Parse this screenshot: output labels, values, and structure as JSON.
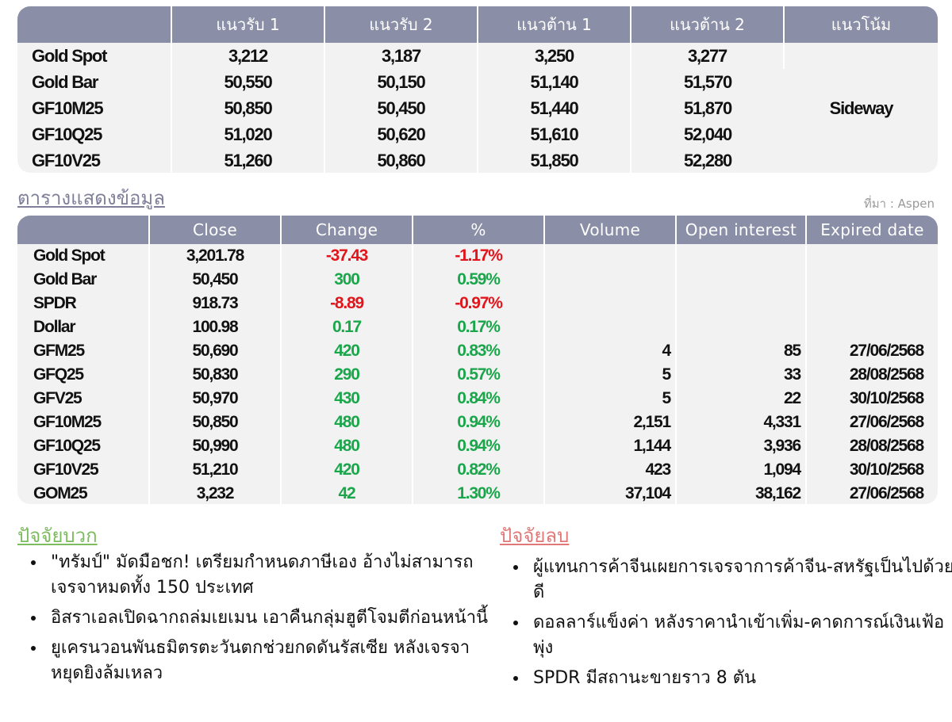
{
  "levels_table": {
    "headers": [
      "",
      "แนวรับ 1",
      "แนวรับ 2",
      "แนวต้าน 1",
      "แนวต้าน 2",
      "แนวโน้ม"
    ],
    "rows": [
      {
        "name": "Gold Spot",
        "s1": "3,212",
        "s2": "3,187",
        "r1": "3,250",
        "r2": "3,277"
      },
      {
        "name": "Gold Bar",
        "s1": "50,550",
        "s2": "50,150",
        "r1": "51,140",
        "r2": "51,570"
      },
      {
        "name": "GF10M25",
        "s1": "50,850",
        "s2": "50,450",
        "r1": "51,440",
        "r2": "51,870"
      },
      {
        "name": "GF10Q25",
        "s1": "51,020",
        "s2": "50,620",
        "r1": "51,610",
        "r2": "52,040"
      },
      {
        "name": "GF10V25",
        "s1": "51,260",
        "s2": "50,860",
        "r1": "51,850",
        "r2": "52,280"
      }
    ],
    "trend": "Sideway"
  },
  "caption": "ตารางแสดงข้อมูล",
  "source": "ที่มา : Aspen",
  "market_table": {
    "headers": [
      "",
      "Close",
      "Change",
      "%",
      "Volume",
      "Open interest",
      "Expired date"
    ],
    "rows": [
      {
        "name": "Gold Spot",
        "close": "3,201.78",
        "change": "-37.43",
        "pct": "-1.17%",
        "volume": "",
        "oi": "",
        "expired": ""
      },
      {
        "name": "Gold Bar",
        "close": "50,450",
        "change": "300",
        "pct": "0.59%",
        "volume": "",
        "oi": "",
        "expired": ""
      },
      {
        "name": "SPDR",
        "close": "918.73",
        "change": "-8.89",
        "pct": "-0.97%",
        "volume": "",
        "oi": "",
        "expired": ""
      },
      {
        "name": "Dollar",
        "close": "100.98",
        "change": "0.17",
        "pct": "0.17%",
        "volume": "",
        "oi": "",
        "expired": ""
      },
      {
        "name": "GFM25",
        "close": "50,690",
        "change": "420",
        "pct": "0.83%",
        "volume": "4",
        "oi": "85",
        "expired": "27/06/2568"
      },
      {
        "name": "GFQ25",
        "close": "50,830",
        "change": "290",
        "pct": "0.57%",
        "volume": "5",
        "oi": "33",
        "expired": "28/08/2568"
      },
      {
        "name": "GFV25",
        "close": "50,970",
        "change": "430",
        "pct": "0.84%",
        "volume": "5",
        "oi": "22",
        "expired": "30/10/2568"
      },
      {
        "name": "GF10M25",
        "close": "50,850",
        "change": "480",
        "pct": "0.94%",
        "volume": "2,151",
        "oi": "4,331",
        "expired": "27/06/2568"
      },
      {
        "name": "GF10Q25",
        "close": "50,990",
        "change": "480",
        "pct": "0.94%",
        "volume": "1,144",
        "oi": "3,936",
        "expired": "28/08/2568"
      },
      {
        "name": "GF10V25",
        "close": "51,210",
        "change": "420",
        "pct": "0.82%",
        "volume": "423",
        "oi": "1,094",
        "expired": "30/10/2568"
      },
      {
        "name": "GOM25",
        "close": "3,232",
        "change": "42",
        "pct": "1.30%",
        "volume": "37,104",
        "oi": "38,162",
        "expired": "27/06/2568"
      }
    ]
  },
  "positive_factors": {
    "title": "ปัจจัยบวก",
    "items": [
      "\"ทรัมป์\" มัดมือชก! เตรียมกำหนดภาษีเอง อ้างไม่สามารถเจรจาหมดทั้ง 150 ประเทศ",
      "อิสราเอลเปิดฉากถล่มเยเมน เอาคืนกลุ่มฮูตีโจมตีก่อนหน้านี้",
      "ยูเครนวอนพันธมิตรตะวันตกช่วยกดดันรัสเซีย หลังเจรจาหยุดยิงล้มเหลว"
    ]
  },
  "negative_factors": {
    "title": "ปัจจัยลบ",
    "items": [
      "ผู้แทนการค้าจีนเผยการเจรจาการค้าจีน-สหรัฐเป็นไปด้วยดี",
      "ดอลลาร์แข็งค่า หลังราคานำเข้าเพิ่ม-คาดการณ์เงินเฟ้อพุ่ง",
      "SPDR มีสถานะขายราว 8 ตัน"
    ]
  },
  "colors": {
    "header": "#8a8ea6",
    "row_bg": "#f2f2f2",
    "negative": "#e0161c",
    "positive": "#1aa64a"
  }
}
